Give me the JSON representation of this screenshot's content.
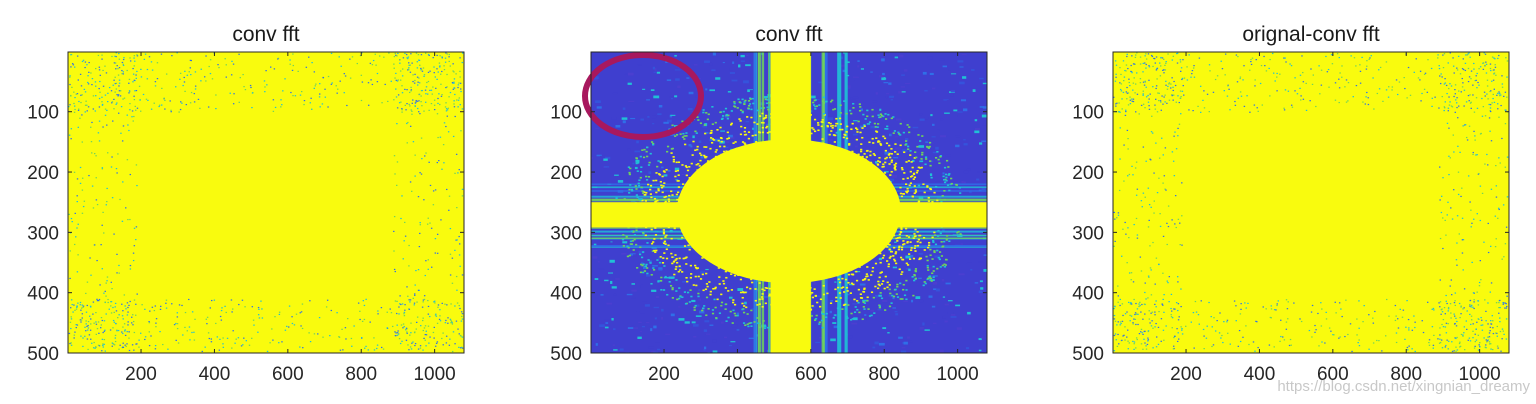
{
  "figure": {
    "watermark": "https://blog.csdn.net/xingnian_dreamy"
  },
  "colors": {
    "yellow": "#f9fb0e",
    "blue_dark": "#3f3fcf",
    "blue_mid": "#2f6fe8",
    "cyan": "#20c0d6",
    "green": "#6fd45a",
    "annotation": "#a8185e"
  },
  "chart_data": [
    {
      "type": "heatmap",
      "title": "conv fft",
      "pattern": "mostly-yellow with sparse noise near edges",
      "xlim": [
        1,
        1080
      ],
      "ylim": [
        1,
        500
      ],
      "y_reversed": true,
      "xticks": [
        200,
        400,
        600,
        800,
        1000
      ],
      "xtick_labels": [
        "200",
        "400",
        "600",
        "800",
        "1000"
      ],
      "yticks": [
        100,
        200,
        300,
        400,
        500
      ],
      "ytick_labels": [
        "100",
        "200",
        "300",
        "400",
        "500"
      ],
      "grid": false
    },
    {
      "type": "heatmap",
      "title": "conv fft",
      "pattern": "blue background with yellow central cross (rows ~250-290, cols ~490-600) and yellow blob around center",
      "xlim": [
        1,
        1080
      ],
      "ylim": [
        1,
        500
      ],
      "y_reversed": true,
      "xticks": [
        200,
        400,
        600,
        800,
        1000
      ],
      "xtick_labels": [
        "200",
        "400",
        "600",
        "800",
        "1000"
      ],
      "yticks": [
        100,
        200,
        300,
        400,
        500
      ],
      "ytick_labels": [
        "100",
        "200",
        "300",
        "400",
        "500"
      ],
      "grid": false,
      "annotation": "hand-drawn ellipse circling top-left corner region"
    },
    {
      "type": "heatmap",
      "title": "orignal-conv fft",
      "pattern": "mostly-yellow with sparse noise near edges",
      "xlim": [
        1,
        1080
      ],
      "ylim": [
        1,
        500
      ],
      "y_reversed": true,
      "xticks": [
        200,
        400,
        600,
        800,
        1000
      ],
      "xtick_labels": [
        "200",
        "400",
        "600",
        "800",
        "1000"
      ],
      "yticks": [
        100,
        200,
        300,
        400,
        500
      ],
      "ytick_labels": [
        "100",
        "200",
        "300",
        "400",
        "500"
      ],
      "grid": false
    }
  ]
}
